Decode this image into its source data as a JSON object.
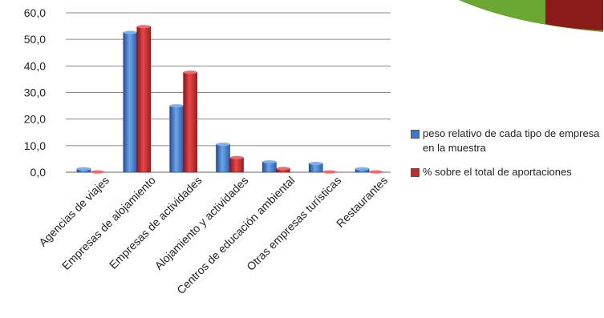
{
  "chart_data": {
    "type": "bar",
    "categories": [
      "Agencias de viajes",
      "Empresas de alojamiento",
      "Empresas de actividades",
      "Alojamiento y actividades",
      "Centros de educación ambiental",
      "Otras empresas turísticas",
      "Restaurantes"
    ],
    "series": [
      {
        "name": "peso relativo de cada tipo de empresa en la muestra",
        "color": "#3a78c9",
        "values": [
          1.3,
          52.6,
          25.0,
          10.5,
          3.9,
          3.3,
          1.3
        ]
      },
      {
        "name": "% sobre el total de aportaciones",
        "color": "#c8282c",
        "values": [
          0.1,
          54.8,
          37.6,
          5.5,
          1.4,
          0.1,
          0.1
        ]
      }
    ],
    "ylim": [
      0,
      60
    ],
    "yticks": [
      "0,0",
      "10,0",
      "20,0",
      "30,0",
      "40,0",
      "50,0",
      "60,0"
    ],
    "grid": true,
    "legend_position": "right"
  },
  "legend": {
    "items": [
      {
        "label": "peso relativo de cada tipo de\nempresa en la muestra",
        "color": "#3a78c9"
      },
      {
        "label": "% sobre el total de aportaciones",
        "color": "#c8282c"
      }
    ]
  },
  "decoration": {
    "colors": [
      "#5aa02c",
      "#8b1a1a"
    ]
  }
}
